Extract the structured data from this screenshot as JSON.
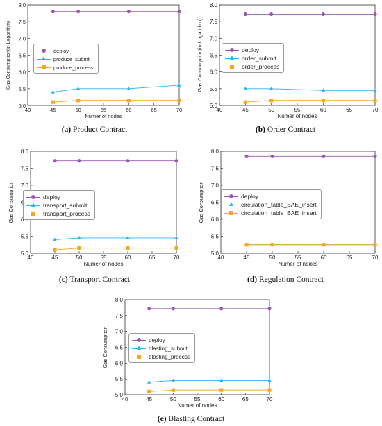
{
  "colors": {
    "deploy": "#9b59b6",
    "submit": "#2fb3ea",
    "process": "#f5a623",
    "extra": "#c8e6a0"
  },
  "panels": [
    {
      "caption": {
        "letter": "(a)",
        "text": "Product Contract"
      },
      "chart_data": {
        "type": "line",
        "x": [
          45,
          50,
          60,
          70
        ],
        "xlim": [
          40,
          70
        ],
        "ylim": [
          5.0,
          8.0
        ],
        "xticks": [
          "40",
          "45",
          "50",
          "55",
          "60",
          "65",
          "70"
        ],
        "yticks": [
          "5.0",
          "5.5",
          "6.0",
          "6.5",
          "7.0",
          "7.5",
          "8.0"
        ],
        "xlabel": "Numer of nodes",
        "ylabel": "Gas Consumption(in Logarithm)",
        "legend_position": "center-left",
        "series": [
          {
            "name": "deploy",
            "marker": "circle",
            "color_key": "deploy",
            "values": [
              7.8,
              7.8,
              7.8,
              7.8
            ]
          },
          {
            "name": "produce_submit",
            "marker": "triangle",
            "color_key": "submit",
            "values": [
              5.4,
              5.5,
              5.5,
              5.6
            ]
          },
          {
            "name": "produce_process",
            "marker": "square",
            "color_key": "process",
            "values": [
              5.1,
              5.15,
              5.15,
              5.15
            ]
          }
        ]
      }
    },
    {
      "caption": {
        "letter": "(b)",
        "text": "Order Contract"
      },
      "chart_data": {
        "type": "line",
        "x": [
          45,
          50,
          60,
          70
        ],
        "xlim": [
          40,
          70
        ],
        "ylim": [
          5.0,
          8.0
        ],
        "xticks": [
          "40",
          "45",
          "50",
          "55",
          "60",
          "65",
          "70"
        ],
        "yticks": [
          "5.0",
          "5.5",
          "6.0",
          "6.5",
          "7.0",
          "7.5",
          "8.0"
        ],
        "xlabel": "Numer of nodes",
        "ylabel": "Gas Consumption(in Logarithm)",
        "legend_position": "center-left",
        "series": [
          {
            "name": "deploy",
            "marker": "circle",
            "color_key": "deploy",
            "values": [
              7.72,
              7.72,
              7.72,
              7.72
            ]
          },
          {
            "name": "order_submit",
            "marker": "triangle",
            "color_key": "submit",
            "values": [
              5.5,
              5.5,
              5.45,
              5.45
            ]
          },
          {
            "name": "order_process",
            "marker": "square",
            "color_key": "process",
            "values": [
              5.1,
              5.15,
              5.15,
              5.15
            ]
          }
        ]
      }
    },
    {
      "caption": {
        "letter": "(c)",
        "text": "Transport Contract"
      },
      "chart_data": {
        "type": "line",
        "x": [
          45,
          50,
          60,
          70
        ],
        "xlim": [
          40,
          70
        ],
        "ylim": [
          5.0,
          8.0
        ],
        "xticks": [
          "40",
          "45",
          "50",
          "55",
          "60",
          "65",
          "70"
        ],
        "yticks": [
          "5.0",
          "5.5",
          "6.0",
          "6.5",
          "7.0",
          "7.5",
          "8.0"
        ],
        "xlabel": "Numer of nodes",
        "ylabel": "Gas Consumption",
        "legend_position": "center-left",
        "series": [
          {
            "name": "deploy",
            "marker": "circle",
            "color_key": "deploy",
            "values": [
              7.72,
              7.72,
              7.72,
              7.72
            ]
          },
          {
            "name": "transport_submit",
            "marker": "triangle",
            "color_key": "submit",
            "values": [
              5.4,
              5.45,
              5.45,
              5.45
            ]
          },
          {
            "name": "transport_process",
            "marker": "square",
            "color_key": "process",
            "values": [
              5.1,
              5.15,
              5.15,
              5.15
            ]
          }
        ]
      }
    },
    {
      "caption": {
        "letter": "(d)",
        "text": "Regulation Contract"
      },
      "chart_data": {
        "type": "line",
        "x": [
          45,
          50,
          60,
          70
        ],
        "xlim": [
          40,
          70
        ],
        "ylim": [
          5.0,
          8.0
        ],
        "xticks": [
          "40",
          "45",
          "50",
          "55",
          "60",
          "65",
          "70"
        ],
        "yticks": [
          "5.0",
          "5.5",
          "6.0",
          "6.5",
          "7.0",
          "7.5",
          "8.0"
        ],
        "xlabel": "Numer of nodes",
        "ylabel": "Gas Consumption",
        "legend_position": "center-left",
        "series": [
          {
            "name": "deploy",
            "marker": "circle",
            "color_key": "deploy",
            "values": [
              7.85,
              7.85,
              7.85,
              7.85
            ]
          },
          {
            "name": "circulation_table_SAE_insert",
            "marker": "triangle",
            "color_key": "submit",
            "values": [
              5.25,
              5.25,
              5.25,
              5.25
            ]
          },
          {
            "name": "circulation_table_BAE_insert",
            "marker": "square",
            "color_key": "process",
            "values": [
              5.25,
              5.25,
              5.25,
              5.25
            ]
          }
        ]
      }
    },
    {
      "caption": {
        "letter": "(e)",
        "text": "Blasting Contract"
      },
      "chart_data": {
        "type": "line",
        "x": [
          45,
          50,
          60,
          70
        ],
        "xlim": [
          40,
          70
        ],
        "ylim": [
          5.0,
          8.0
        ],
        "xticks": [
          "40",
          "45",
          "50",
          "55",
          "60",
          "65",
          "70"
        ],
        "yticks": [
          "5.0",
          "5.5",
          "6.0",
          "6.5",
          "7.0",
          "7.5",
          "8.0"
        ],
        "xlabel": "Numer of nodes",
        "ylabel": "Gas Consumption",
        "legend_position": "center-left",
        "series": [
          {
            "name": "deploy",
            "marker": "circle",
            "color_key": "deploy",
            "values": [
              7.72,
              7.72,
              7.72,
              7.72
            ]
          },
          {
            "name": "blasting_submit",
            "marker": "triangle",
            "color_key": "submit",
            "values": [
              5.4,
              5.45,
              5.45,
              5.45
            ]
          },
          {
            "name": "blasting_process",
            "marker": "square",
            "color_key": "process",
            "values": [
              5.1,
              5.15,
              5.15,
              5.15
            ]
          }
        ]
      }
    }
  ]
}
